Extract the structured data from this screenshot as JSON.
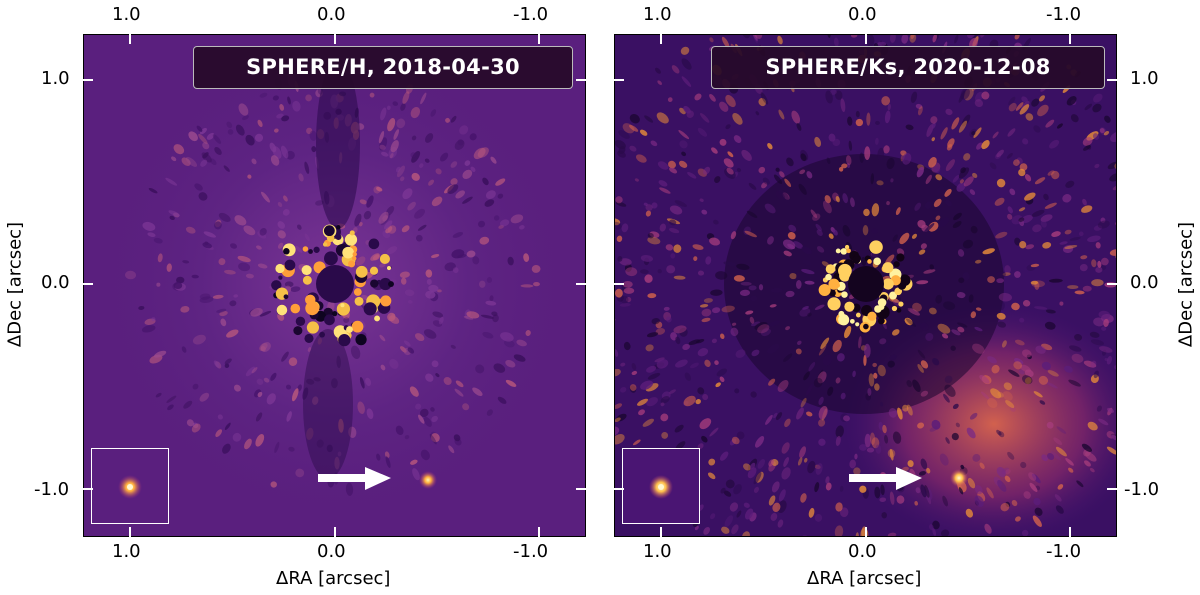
{
  "panels": [
    {
      "title": "SPHERE/H, 2018-04-30",
      "xlabel": "ΔRA [arcsec]",
      "ylabel": "ΔDec [arcsec]",
      "x_ticks": [
        "1.0",
        "0.0",
        "-1.0"
      ],
      "y_ticks": [
        "1.0",
        "0.0",
        "-1.0"
      ]
    },
    {
      "title": "SPHERE/Ks, 2020-12-08",
      "xlabel": "ΔRA [arcsec]",
      "ylabel": "ΔDec [arcsec]",
      "x_ticks": [
        "1.0",
        "0.0",
        "-1.0"
      ],
      "y_ticks": [
        "1.0",
        "0.0",
        "-1.0"
      ]
    }
  ],
  "colors": {
    "colormap": "inferno/magma",
    "arrow": "#ffffff",
    "badge_bg": "#260a28"
  }
}
